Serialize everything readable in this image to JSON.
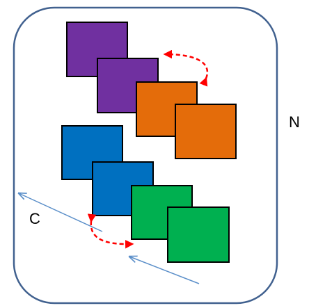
{
  "labels": {
    "top_right": "N",
    "left": "C"
  },
  "colors": {
    "purple": "#7030A0",
    "orange": "#E46C0A",
    "blue": "#0070C0",
    "green": "#00B050",
    "frame": "#41618F",
    "arrow_blue": "#5B8FC9",
    "arrow_red": "#FF0000"
  }
}
